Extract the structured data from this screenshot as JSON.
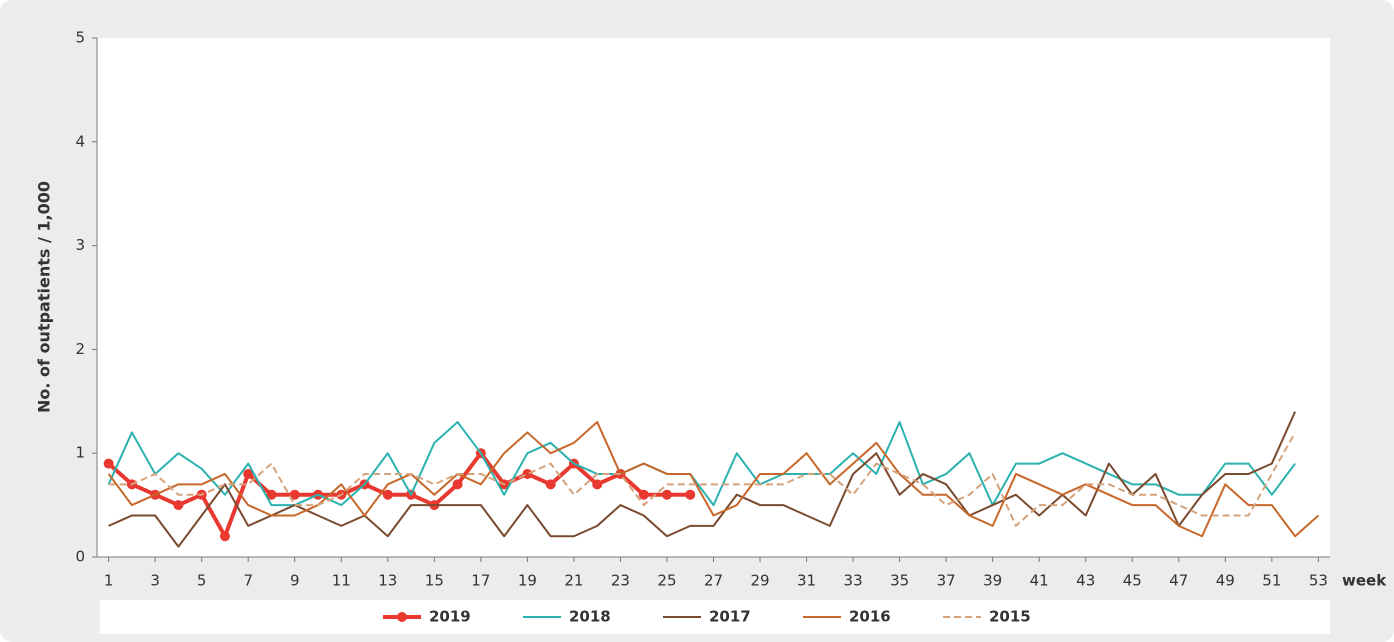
{
  "chart_data": {
    "type": "line",
    "y_label": "No. of outpatients / 1,000",
    "x_label": "week",
    "x": [
      1,
      2,
      3,
      4,
      5,
      6,
      7,
      8,
      9,
      10,
      11,
      12,
      13,
      14,
      15,
      16,
      17,
      18,
      19,
      20,
      21,
      22,
      23,
      24,
      25,
      26,
      27,
      28,
      29,
      30,
      31,
      32,
      33,
      34,
      35,
      36,
      37,
      38,
      39,
      40,
      41,
      42,
      43,
      44,
      45,
      46,
      47,
      48,
      49,
      50,
      51,
      52,
      53
    ],
    "xlim": [
      0.5,
      53.5
    ],
    "xticks": [
      1,
      3,
      5,
      7,
      9,
      11,
      13,
      15,
      17,
      19,
      21,
      23,
      25,
      27,
      29,
      31,
      33,
      35,
      37,
      39,
      41,
      43,
      45,
      47,
      49,
      51,
      53
    ],
    "ylim": [
      0,
      5
    ],
    "yticks": [
      0,
      1,
      2,
      3,
      4,
      5
    ],
    "grid": false,
    "legend": "bottom",
    "series": [
      {
        "name": "2019",
        "color": "#e8382f",
        "markers": true,
        "values": [
          0.9,
          0.7,
          0.6,
          0.5,
          0.6,
          0.2,
          0.8,
          0.6,
          0.6,
          0.6,
          0.6,
          0.7,
          0.6,
          0.6,
          0.5,
          0.7,
          1.0,
          0.7,
          0.8,
          0.7,
          0.9,
          0.7,
          0.8,
          0.6,
          0.6,
          0.6,
          null,
          null,
          null,
          null,
          null,
          null,
          null,
          null,
          null,
          null,
          null,
          null,
          null,
          null,
          null,
          null,
          null,
          null,
          null,
          null,
          null,
          null,
          null,
          null,
          null,
          null,
          null
        ]
      },
      {
        "name": "2018",
        "color": "#2bb2b0",
        "values": [
          0.7,
          1.2,
          0.8,
          1.0,
          0.85,
          0.6,
          0.9,
          0.5,
          0.5,
          0.6,
          0.5,
          0.7,
          1.0,
          0.6,
          1.1,
          1.3,
          1.0,
          0.6,
          1.0,
          1.1,
          0.9,
          0.8,
          0.8,
          0.9,
          0.8,
          0.8,
          0.5,
          1.0,
          0.7,
          0.8,
          0.8,
          0.8,
          1.0,
          0.8,
          1.3,
          0.7,
          0.8,
          1.0,
          0.5,
          0.9,
          0.9,
          1.0,
          0.9,
          0.8,
          0.7,
          0.7,
          0.6,
          0.6,
          0.9,
          0.9,
          0.6,
          0.9,
          null
        ]
      },
      {
        "name": "2017",
        "color": "#7a4a2e",
        "values": [
          0.3,
          0.4,
          0.4,
          0.1,
          0.4,
          0.7,
          0.3,
          0.4,
          0.5,
          0.4,
          0.3,
          0.4,
          0.2,
          0.5,
          0.5,
          0.5,
          0.5,
          0.2,
          0.5,
          0.2,
          0.2,
          0.3,
          0.5,
          0.4,
          0.2,
          0.3,
          0.3,
          0.6,
          0.5,
          0.5,
          0.4,
          0.3,
          0.8,
          1.0,
          0.6,
          0.8,
          0.7,
          0.4,
          0.5,
          0.6,
          0.4,
          0.6,
          0.4,
          0.9,
          0.6,
          0.8,
          0.3,
          0.6,
          0.8,
          0.8,
          0.9,
          1.4,
          null
        ]
      },
      {
        "name": "2016",
        "color": "#c8672a",
        "values": [
          0.8,
          0.5,
          0.6,
          0.7,
          0.7,
          0.8,
          0.5,
          0.4,
          0.4,
          0.5,
          0.7,
          0.4,
          0.7,
          0.8,
          0.6,
          0.8,
          0.7,
          1.0,
          1.2,
          1.0,
          1.1,
          1.3,
          0.8,
          0.9,
          0.8,
          0.8,
          0.4,
          0.5,
          0.8,
          0.8,
          1.0,
          0.7,
          0.9,
          1.1,
          0.8,
          0.6,
          0.6,
          0.4,
          0.3,
          0.8,
          0.7,
          0.6,
          0.7,
          0.6,
          0.5,
          0.5,
          0.3,
          0.2,
          0.7,
          0.5,
          0.5,
          0.2,
          0.4
        ]
      },
      {
        "name": "2015",
        "color": "#d6a27a",
        "dashed": true,
        "values": [
          0.7,
          0.7,
          0.8,
          0.6,
          0.6,
          0.7,
          0.7,
          0.9,
          0.5,
          0.5,
          0.6,
          0.8,
          0.8,
          0.8,
          0.7,
          0.8,
          0.8,
          0.7,
          0.8,
          0.9,
          0.6,
          0.8,
          0.8,
          0.5,
          0.7,
          0.7,
          0.7,
          0.7,
          0.7,
          0.7,
          0.8,
          0.8,
          0.6,
          0.9,
          0.8,
          0.7,
          0.5,
          0.6,
          0.8,
          0.3,
          0.5,
          0.5,
          0.7,
          0.7,
          0.6,
          0.6,
          0.5,
          0.4,
          0.4,
          0.4,
          0.8,
          1.2,
          null
        ]
      }
    ]
  }
}
